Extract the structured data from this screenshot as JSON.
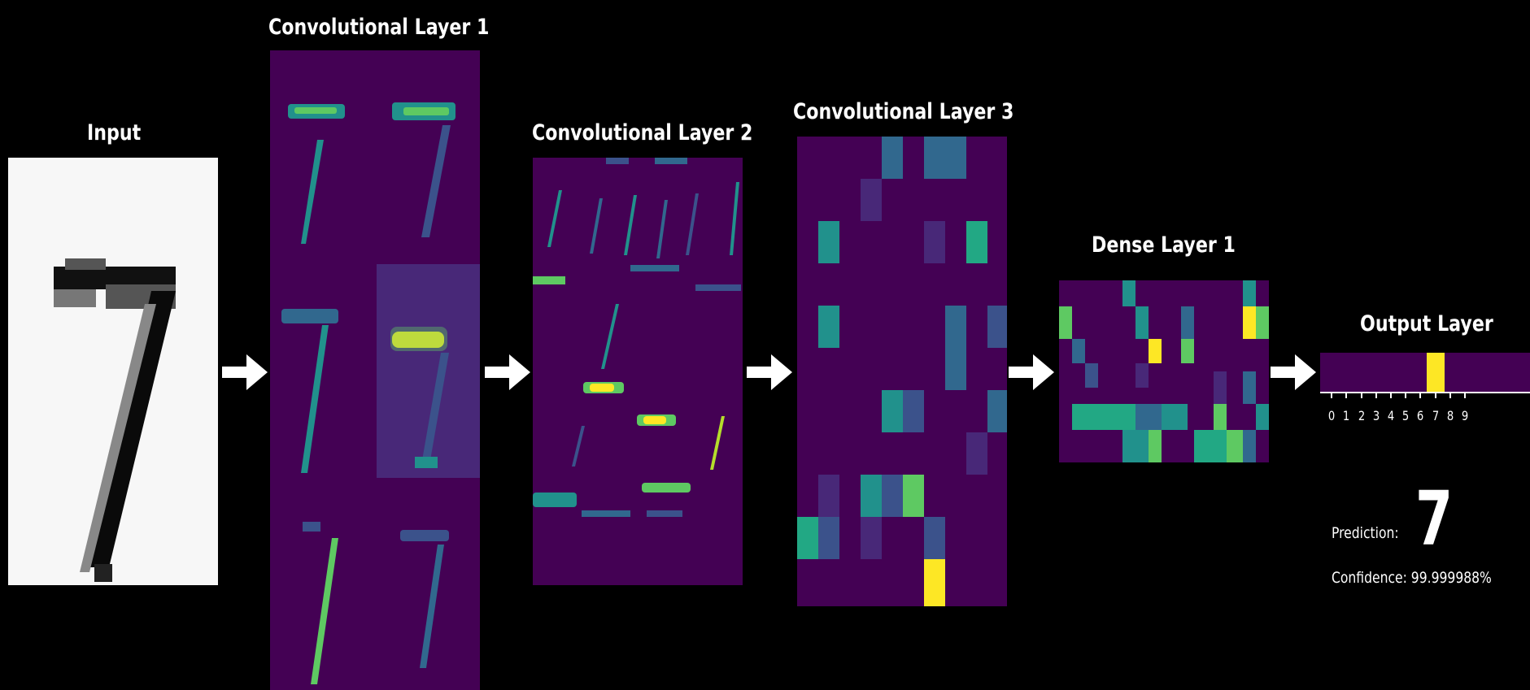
{
  "layers": {
    "input": "Input",
    "conv1": "Convolutional Layer 1",
    "conv2": "Convolutional Layer 2",
    "conv3": "Convolutional Layer 3",
    "dense1": "Dense Layer 1",
    "output": "Output Layer"
  },
  "output": {
    "classes": [
      "0",
      "1",
      "2",
      "3",
      "4",
      "5",
      "6",
      "7",
      "8",
      "9"
    ],
    "activations": [
      0,
      0,
      0,
      0,
      0,
      0,
      0,
      1,
      0,
      0
    ],
    "prediction_label": "Prediction:",
    "prediction_value": "7",
    "confidence_text": "Confidence: 99.999988%"
  },
  "colors": {
    "background": "#000000",
    "viridis_low": "#440154",
    "viridis_mid": "#21918c",
    "viridis_high": "#fde725",
    "arrow": "#ffffff"
  },
  "icons": [
    "right-arrow-icon"
  ]
}
